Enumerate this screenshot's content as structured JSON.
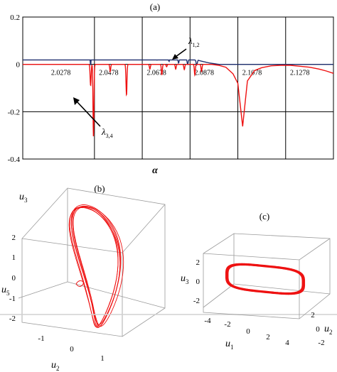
{
  "chart_data": [
    {
      "type": "line",
      "panel_label": "(a)",
      "xlabel": "α",
      "ylabel": "",
      "ylim": [
        -0.4,
        0.2
      ],
      "yticks": [
        "0.2",
        "0",
        "-0.2",
        "-0.4"
      ],
      "xlim": [
        2.0178,
        2.1478
      ],
      "xtick_labels": [
        "2.0278",
        "2.0478",
        "2.0678",
        "2.0878",
        "2.1078",
        "2.1278"
      ],
      "xtick_values": [
        2.0278,
        2.0478,
        2.0678,
        2.0878,
        2.1078,
        2.1278
      ],
      "grid": true,
      "annotations": [
        {
          "text": "λ1,2",
          "base": "λ",
          "sub": "1,2"
        },
        {
          "text": "λ3,4",
          "base": "λ",
          "sub": "3,4"
        }
      ],
      "series": [
        {
          "color": "#1f2f6e",
          "x": [
            2.0178,
            2.0278,
            2.0298,
            2.0318,
            2.0338,
            2.0378,
            2.0418,
            2.0438,
            2.0458,
            2.0478,
            2.0548,
            2.0618,
            2.0688,
            2.0758,
            2.0828,
            2.0868,
            2.0898,
            2.0928,
            2.0958,
            2.0998,
            2.1478
          ],
          "y": [
            0.127,
            0.113,
            0.11,
            0.108,
            0.106,
            0.102,
            0.098,
            0.095,
            0.093,
            0.091,
            0.083,
            0.074,
            0.064,
            0.052,
            0.038,
            0.029,
            0.021,
            0.013,
            0.006,
            0.0,
            0.0
          ],
          "dips": [
            {
              "x": 2.0306,
              "y": 0.05
            },
            {
              "x": 2.0378,
              "y": 0.035
            },
            {
              "x": 2.044,
              "y": 0.042
            },
            {
              "x": 2.0462,
              "y": -0.005
            },
            {
              "x": 2.054,
              "y": 0.055
            },
            {
              "x": 2.061,
              "y": 0.043
            },
            {
              "x": 2.068,
              "y": 0.02
            },
            {
              "x": 2.074,
              "y": 0.018
            },
            {
              "x": 2.079,
              "y": 0.012
            },
            {
              "x": 2.083,
              "y": 0.005
            },
            {
              "x": 2.0868,
              "y": 0.0
            },
            {
              "x": 2.0906,
              "y": -0.002
            }
          ]
        },
        {
          "color": "#ee1111",
          "x": [
            2.0178,
            2.0968,
            2.1478
          ],
          "y": [
            0.0,
            0.0,
            0.0
          ],
          "dips": [
            {
              "x": 2.0462,
              "y": -0.09
            },
            {
              "x": 2.0474,
              "y": -0.305
            },
            {
              "x": 2.0544,
              "y": -0.03
            },
            {
              "x": 2.0612,
              "y": -0.13
            },
            {
              "x": 2.071,
              "y": -0.02
            },
            {
              "x": 2.076,
              "y": -0.045
            },
            {
              "x": 2.078,
              "y": -0.01
            },
            {
              "x": 2.0818,
              "y": -0.02
            },
            {
              "x": 2.0854,
              "y": -0.022
            },
            {
              "x": 2.0898,
              "y": -0.045
            },
            {
              "x": 2.0926,
              "y": -0.03
            }
          ],
          "tail": {
            "x": [
              2.0968,
              2.0998,
              2.1028,
              2.1058,
              2.1078,
              2.1098,
              2.1118,
              2.1148,
              2.1178,
              2.1218,
              2.1258,
              2.1298,
              2.1338,
              2.1378,
              2.1418,
              2.1448,
              2.1478
            ],
            "y": [
              0.0,
              -0.004,
              -0.012,
              -0.04,
              -0.08,
              -0.262,
              -0.07,
              -0.026,
              -0.014,
              -0.006,
              -0.004,
              -0.004,
              -0.008,
              -0.012,
              -0.02,
              -0.028,
              -0.038
            ]
          }
        }
      ]
    },
    {
      "type": "3d-phase-portrait",
      "panel_label": "(b)",
      "axis_labels": [
        {
          "base": "u",
          "sub": "3"
        },
        {
          "base": "u",
          "sub": "5"
        },
        {
          "base": "u",
          "sub": "2"
        }
      ],
      "vertical_ticks": [
        "2",
        "1",
        "0",
        "-1",
        "-2"
      ],
      "depth_ticks": [
        "-1",
        "0",
        "1"
      ]
    },
    {
      "type": "3d-phase-portrait",
      "panel_label": "(c)",
      "axis_labels": [
        {
          "base": "u",
          "sub": "3"
        },
        {
          "base": "u",
          "sub": "1"
        },
        {
          "base": "u",
          "sub": "2"
        }
      ],
      "vertical_ticks": [
        "2",
        "0",
        "-2"
      ],
      "u1_ticks": [
        "-4",
        "-2",
        "0",
        "2",
        "4"
      ],
      "u2_ticks": [
        "2",
        "0",
        "-2"
      ]
    }
  ]
}
